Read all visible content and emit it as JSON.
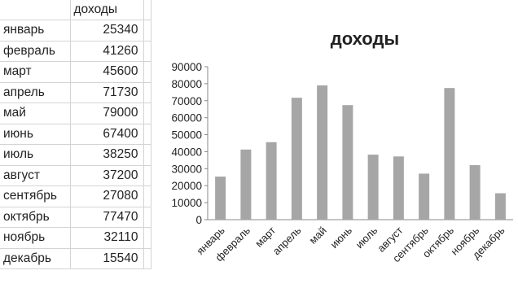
{
  "table": {
    "header": [
      "",
      "доходы"
    ],
    "rows": [
      {
        "month": "январь",
        "value": "25340"
      },
      {
        "month": "февраль",
        "value": "41260"
      },
      {
        "month": "март",
        "value": "45600"
      },
      {
        "month": "апрель",
        "value": "71730"
      },
      {
        "month": "май",
        "value": "79000"
      },
      {
        "month": "июнь",
        "value": "67400"
      },
      {
        "month": "июль",
        "value": "38250"
      },
      {
        "month": "август",
        "value": "37200"
      },
      {
        "month": "сентябрь",
        "value": "27080"
      },
      {
        "month": "октябрь",
        "value": "77470"
      },
      {
        "month": "ноябрь",
        "value": "32110"
      },
      {
        "month": "декабрь",
        "value": "15540"
      }
    ]
  },
  "chart_data": {
    "type": "bar",
    "title": "доходы",
    "categories": [
      "январь",
      "февраль",
      "март",
      "апрель",
      "май",
      "июнь",
      "июль",
      "август",
      "сентябрь",
      "октябрь",
      "ноябрь",
      "декабрь"
    ],
    "values": [
      25340,
      41260,
      45600,
      71730,
      79000,
      67400,
      38250,
      37200,
      27080,
      77470,
      32110,
      15540
    ],
    "ylim": [
      0,
      90000
    ],
    "yticks": [
      0,
      10000,
      20000,
      30000,
      40000,
      50000,
      60000,
      70000,
      80000,
      90000
    ],
    "ytick_labels": [
      "0",
      "10000",
      "20000",
      "30000",
      "40000",
      "50000",
      "60000",
      "70000",
      "80000",
      "90000"
    ],
    "grid": false,
    "legend": "none",
    "bar_color": "#a6a6a6"
  }
}
